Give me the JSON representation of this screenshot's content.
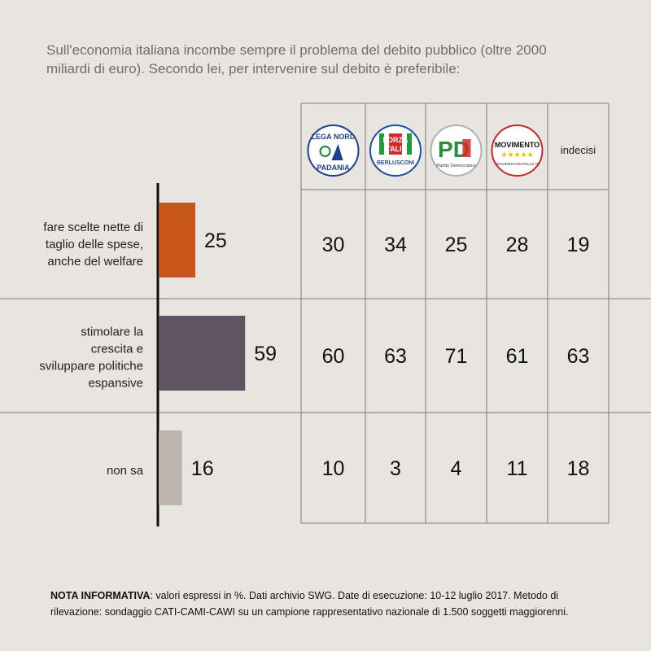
{
  "question": {
    "line1": "Sull'economia italiana incombe sempre il problema del debito pubblico (oltre 2000",
    "line2": "miliardi di euro). Secondo lei, per intervenire sul debito è preferibile:"
  },
  "note": {
    "label": "NOTA INFORMATIVA",
    "line1": ": valori espressi in %. Dati archivio SWG. Date di esecuzione: 10-12 luglio 2017. Metodo di",
    "line2": "rilevazione: sondaggio CATI-CAMI-CAWI su un campione rappresentativo nazionale di 1.500 soggetti maggiorenni."
  },
  "logos": {
    "lega": {
      "top": "LEGA NORD",
      "bottom": "PADANIA",
      "color": "#1c3f8f"
    },
    "forza": {
      "line1": "FORZA",
      "line2": "ITALIA",
      "line3": "BERLUSCONI",
      "color": "#1a4fa0"
    },
    "pd": {
      "mark": "PD",
      "caption": "Partito Democratico",
      "color": "#2a8f3a",
      "accent": "#d62828"
    },
    "m5s": {
      "line1": "MOVIMENTO",
      "line2": "MOVIMENTO5STELLE.IT",
      "color": "#c62828",
      "star": "#f2b705"
    }
  },
  "chart_data": {
    "type": "bar",
    "categories": [
      [
        "fare scelte nette di",
        "taglio delle spese,",
        "anche del welfare"
      ],
      [
        "stimolare la",
        "crescita e",
        "sviluppare politiche",
        "espansive"
      ],
      [
        "non sa"
      ]
    ],
    "values": [
      25,
      59,
      16
    ],
    "bar_colors": [
      "#c8561a",
      "#5e5464",
      "#bdb4ae"
    ],
    "table": {
      "columns": [
        "Lega Nord",
        "Forza Italia",
        "PD",
        "Movimento 5 Stelle",
        "indecisi"
      ],
      "column_header_text": "indecisi",
      "rows": [
        [
          30,
          34,
          25,
          28,
          19
        ],
        [
          60,
          63,
          71,
          61,
          63
        ],
        [
          10,
          3,
          4,
          11,
          18
        ]
      ]
    }
  }
}
